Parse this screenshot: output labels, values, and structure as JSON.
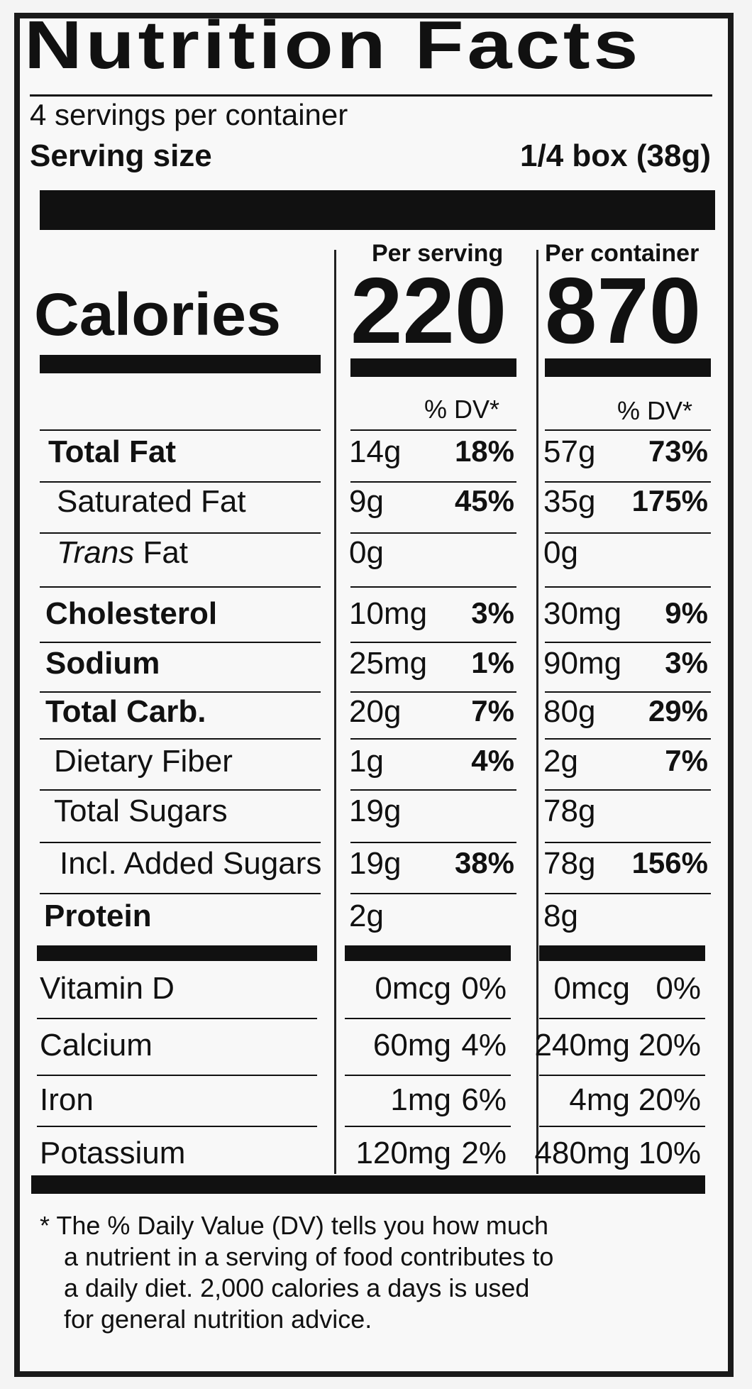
{
  "title": "Nutrition Facts",
  "servings_per_container": "4 servings per container",
  "serving_size_label": "Serving size",
  "serving_size_value": "1/4 box (38g)",
  "per_serving_label": "Per serving",
  "per_container_label": "Per container",
  "calories_label": "Calories",
  "calories_per_serving": "220",
  "calories_per_container": "870",
  "dv_header": "% DV*",
  "nutrients": [
    {
      "name": "Total Fat",
      "bold": true,
      "s_amt": "14g",
      "s_dv": "18%",
      "c_amt": "57g",
      "c_dv": "73%"
    },
    {
      "name": "Saturated Fat",
      "s_amt": "9g",
      "s_dv": "45%",
      "c_amt": "35g",
      "c_dv": "175%"
    },
    {
      "name_italic": "Trans",
      "name_rest": " Fat",
      "s_amt": "0g",
      "s_dv": "",
      "c_amt": "0g",
      "c_dv": ""
    },
    {
      "name": "Cholesterol",
      "bold": true,
      "s_amt": "10mg",
      "s_dv": "3%",
      "c_amt": "30mg",
      "c_dv": "9%"
    },
    {
      "name": "Sodium",
      "bold": true,
      "s_amt": "25mg",
      "s_dv": "1%",
      "c_amt": "90mg",
      "c_dv": "3%"
    },
    {
      "name": "Total Carb.",
      "bold": true,
      "s_amt": "20g",
      "s_dv": "7%",
      "c_amt": "80g",
      "c_dv": "29%"
    },
    {
      "name": "Dietary Fiber",
      "s_amt": "1g",
      "s_dv": "4%",
      "c_amt": "2g",
      "c_dv": "7%"
    },
    {
      "name": "Total Sugars",
      "s_amt": "19g",
      "s_dv": "",
      "c_amt": "78g",
      "c_dv": ""
    },
    {
      "name": "Incl. Added Sugars",
      "s_amt": "19g",
      "s_dv": "38%",
      "c_amt": "78g",
      "c_dv": "156%"
    },
    {
      "name": "Protein",
      "bold": true,
      "s_amt": "2g",
      "s_dv": "",
      "c_amt": "8g",
      "c_dv": ""
    }
  ],
  "vitamins": [
    {
      "name": "Vitamin D",
      "s_amt": "0mcg",
      "s_dv": "0%",
      "c_amt": "0mcg",
      "c_dv": "0%"
    },
    {
      "name": "Calcium",
      "s_amt": "60mg",
      "s_dv": "4%",
      "c_amt": "240mg",
      "c_dv": "20%"
    },
    {
      "name": "Iron",
      "s_amt": "1mg",
      "s_dv": "6%",
      "c_amt": "4mg",
      "c_dv": "20%"
    },
    {
      "name": "Potassium",
      "s_amt": "120mg",
      "s_dv": "2%",
      "c_amt": "480mg",
      "c_dv": "10%"
    }
  ],
  "footnote": [
    "* The % Daily Value (DV) tells you how much",
    "a nutrient in a serving of food contributes to",
    "a daily diet. 2,000 calories a days is used",
    "for general nutrition advice."
  ]
}
